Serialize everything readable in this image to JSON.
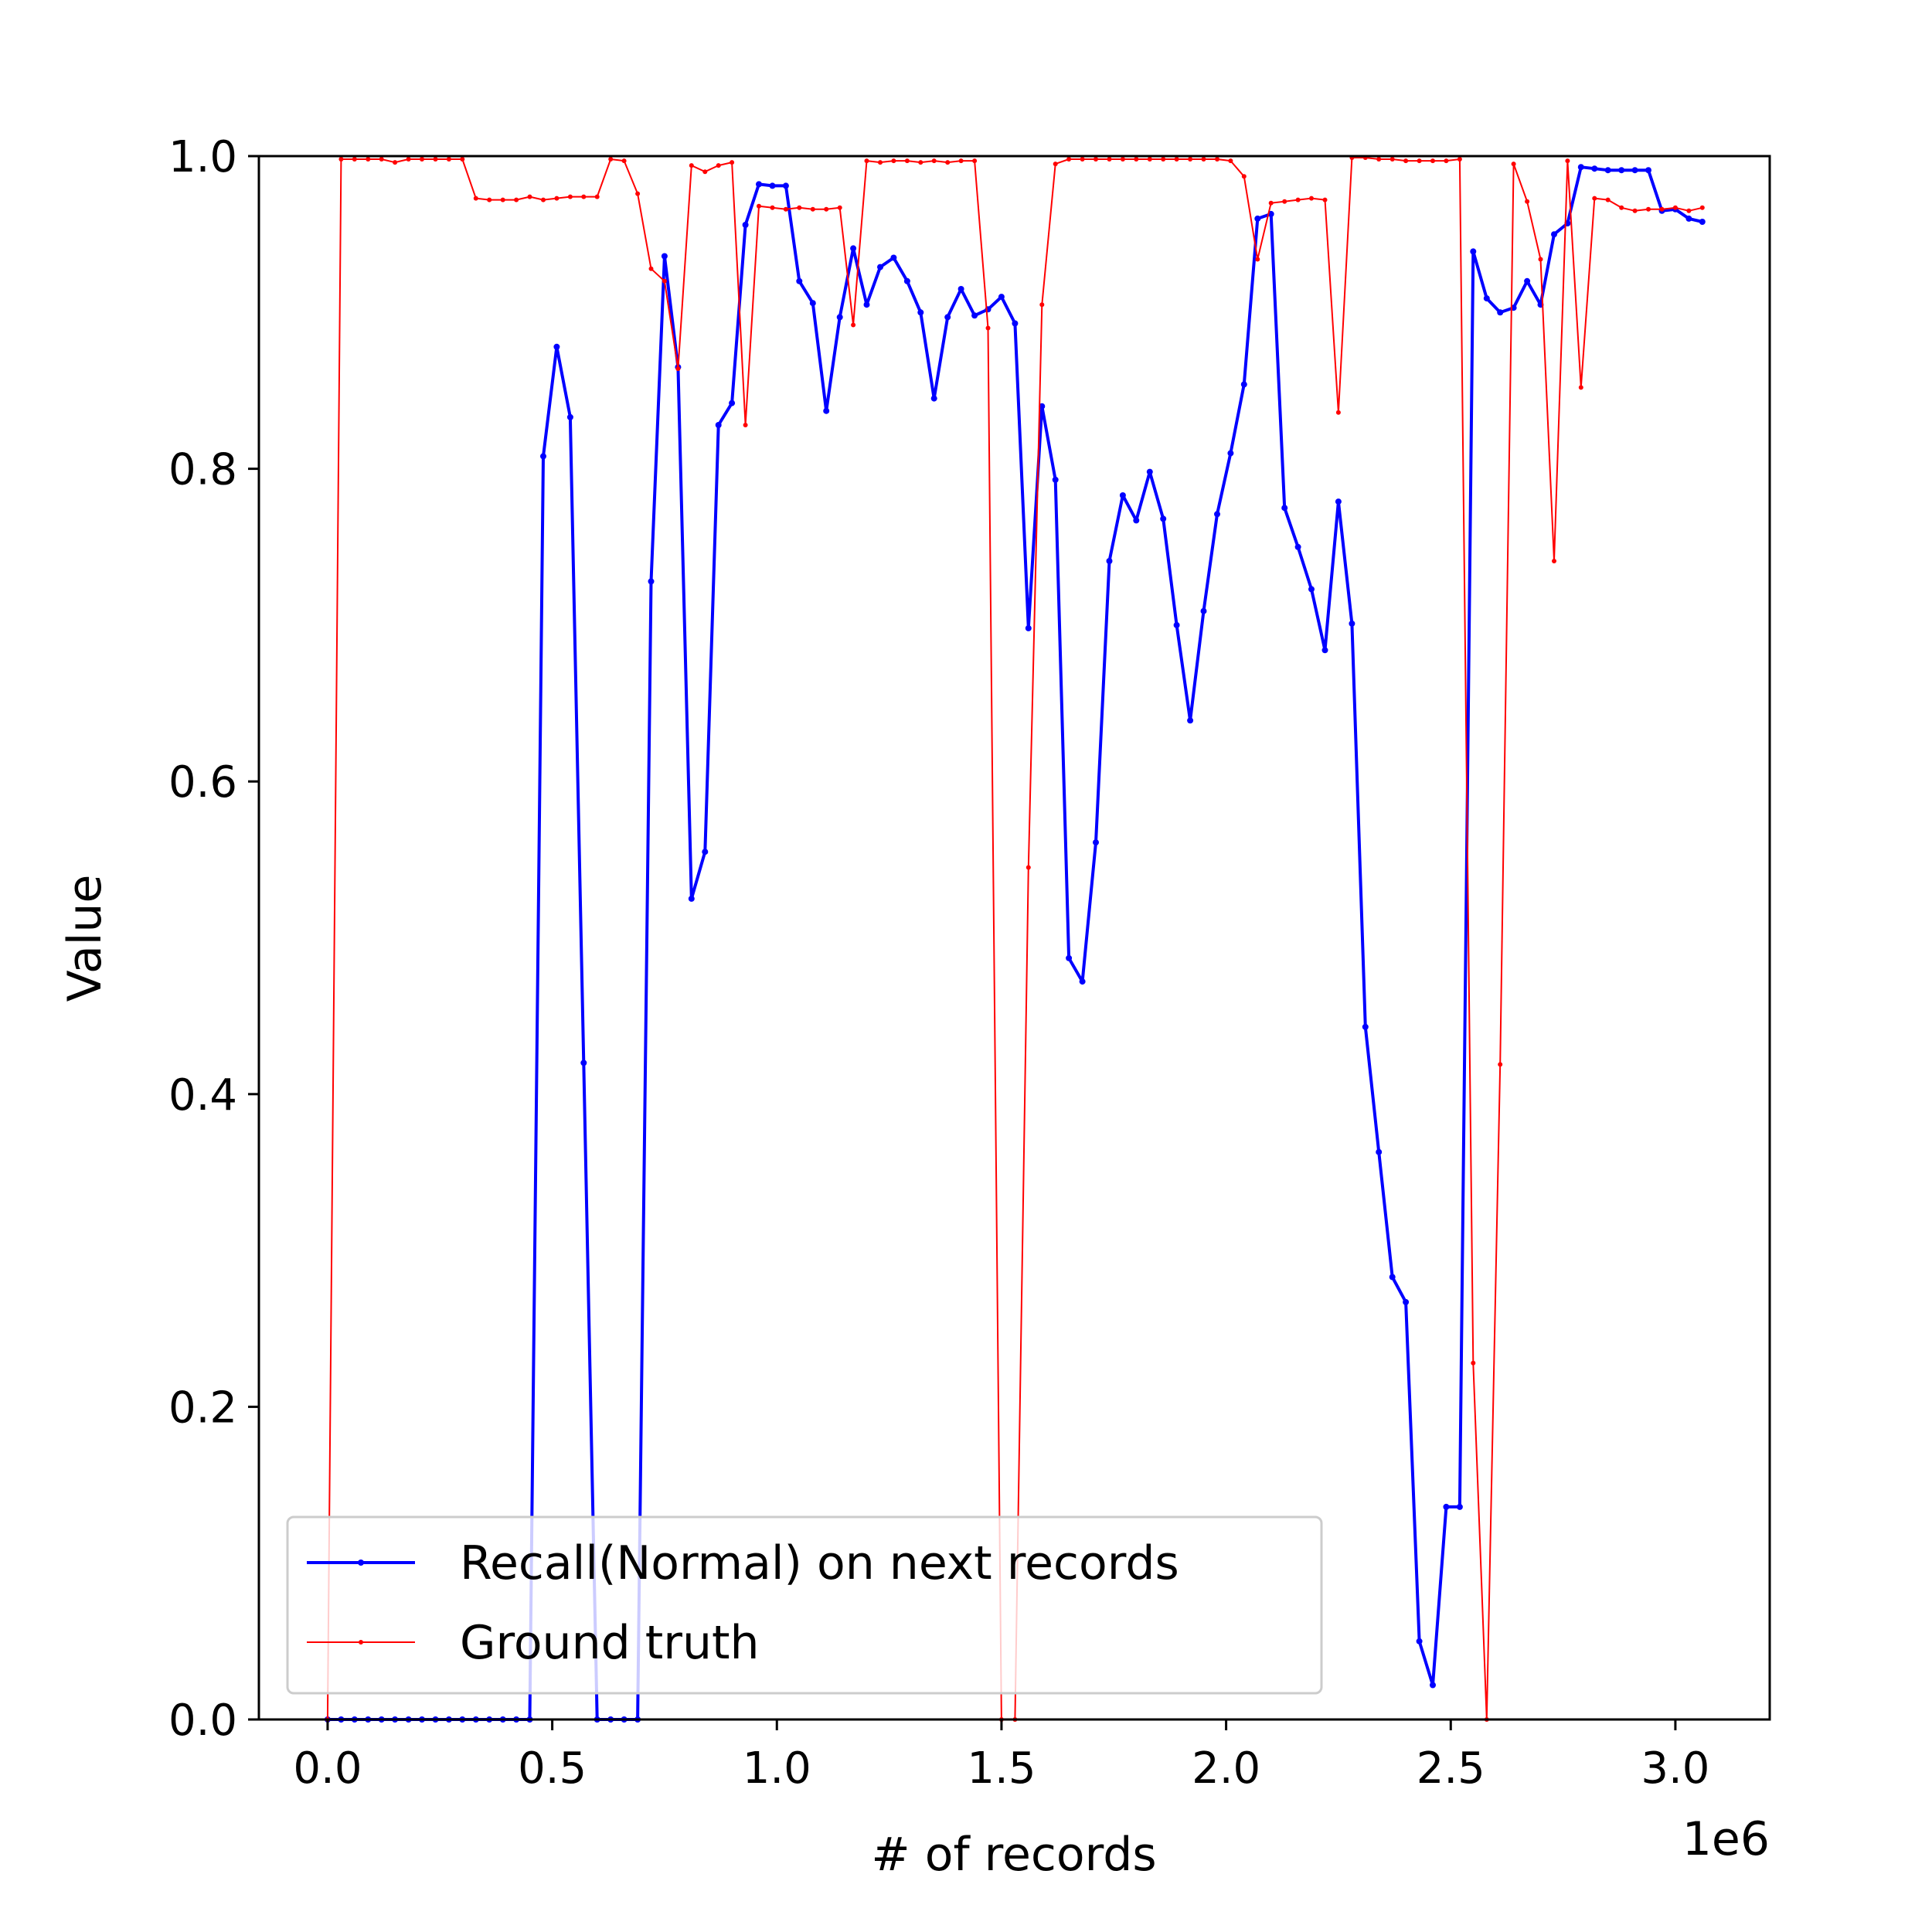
{
  "chart_data": {
    "type": "line",
    "xlabel": "# of records",
    "ylabel": "Value",
    "x_offset_text": "1e6",
    "xlim": [
      -0.153,
      3.21
    ],
    "ylim": [
      0.0,
      1.0
    ],
    "x_ticks": [
      0.0,
      0.5,
      1.0,
      1.5,
      2.0,
      2.5,
      3.0
    ],
    "x_tick_labels": [
      "0.0",
      "0.5",
      "1.0",
      "1.5",
      "2.0",
      "2.5",
      "3.0"
    ],
    "y_ticks": [
      0.0,
      0.2,
      0.4,
      0.6,
      0.8,
      1.0
    ],
    "y_tick_labels": [
      "0.0",
      "0.2",
      "0.4",
      "0.6",
      "0.8",
      "1.0"
    ],
    "grid": false,
    "legend_position": "lower left",
    "series": [
      {
        "name": "Recall(Normal) on next records",
        "color": "#0000ff",
        "points": [
          [
            0.0,
            0.0
          ],
          [
            0.03,
            0.0
          ],
          [
            0.06,
            0.0
          ],
          [
            0.09,
            0.0
          ],
          [
            0.12,
            0.0
          ],
          [
            0.15,
            0.0
          ],
          [
            0.18,
            0.0
          ],
          [
            0.21,
            0.0
          ],
          [
            0.24,
            0.0
          ],
          [
            0.27,
            0.0
          ],
          [
            0.3,
            0.0
          ],
          [
            0.33,
            0.0
          ],
          [
            0.36,
            0.0
          ],
          [
            0.39,
            0.0
          ],
          [
            0.42,
            0.0
          ],
          [
            0.45,
            0.0
          ],
          [
            0.48,
            0.808
          ],
          [
            0.51,
            0.878
          ],
          [
            0.54,
            0.833
          ],
          [
            0.57,
            0.42
          ],
          [
            0.6,
            0.0
          ],
          [
            0.63,
            0.0
          ],
          [
            0.66,
            0.0
          ],
          [
            0.69,
            0.0
          ],
          [
            0.72,
            0.728
          ],
          [
            0.75,
            0.936
          ],
          [
            0.78,
            0.865
          ],
          [
            0.81,
            0.525
          ],
          [
            0.84,
            0.555
          ],
          [
            0.87,
            0.828
          ],
          [
            0.9,
            0.842
          ],
          [
            0.93,
            0.956
          ],
          [
            0.96,
            0.982
          ],
          [
            0.99,
            0.981
          ],
          [
            1.02,
            0.981
          ],
          [
            1.05,
            0.92
          ],
          [
            1.08,
            0.906
          ],
          [
            1.11,
            0.837
          ],
          [
            1.14,
            0.897
          ],
          [
            1.17,
            0.941
          ],
          [
            1.2,
            0.905
          ],
          [
            1.23,
            0.929
          ],
          [
            1.26,
            0.935
          ],
          [
            1.29,
            0.92
          ],
          [
            1.32,
            0.9
          ],
          [
            1.35,
            0.845
          ],
          [
            1.38,
            0.897
          ],
          [
            1.41,
            0.915
          ],
          [
            1.44,
            0.898
          ],
          [
            1.47,
            0.902
          ],
          [
            1.5,
            0.91
          ],
          [
            1.53,
            0.893
          ],
          [
            1.56,
            0.698
          ],
          [
            1.59,
            0.84
          ],
          [
            1.62,
            0.793
          ],
          [
            1.65,
            0.487
          ],
          [
            1.68,
            0.472
          ],
          [
            1.71,
            0.561
          ],
          [
            1.74,
            0.741
          ],
          [
            1.77,
            0.783
          ],
          [
            1.8,
            0.767
          ],
          [
            1.83,
            0.798
          ],
          [
            1.86,
            0.768
          ],
          [
            1.89,
            0.7
          ],
          [
            1.92,
            0.639
          ],
          [
            1.95,
            0.709
          ],
          [
            1.98,
            0.771
          ],
          [
            2.01,
            0.81
          ],
          [
            2.04,
            0.854
          ],
          [
            2.07,
            0.96
          ],
          [
            2.1,
            0.963
          ],
          [
            2.13,
            0.775
          ],
          [
            2.16,
            0.75
          ],
          [
            2.19,
            0.723
          ],
          [
            2.22,
            0.684
          ],
          [
            2.25,
            0.779
          ],
          [
            2.28,
            0.701
          ],
          [
            2.31,
            0.443
          ],
          [
            2.34,
            0.363
          ],
          [
            2.37,
            0.283
          ],
          [
            2.4,
            0.267
          ],
          [
            2.43,
            0.05
          ],
          [
            2.46,
            0.022
          ],
          [
            2.49,
            0.136
          ],
          [
            2.52,
            0.136
          ],
          [
            2.55,
            0.939
          ],
          [
            2.58,
            0.909
          ],
          [
            2.61,
            0.9
          ],
          [
            2.64,
            0.903
          ],
          [
            2.67,
            0.92
          ],
          [
            2.7,
            0.905
          ],
          [
            2.73,
            0.95
          ],
          [
            2.76,
            0.957
          ],
          [
            2.79,
            0.993
          ],
          [
            2.82,
            0.992
          ],
          [
            2.85,
            0.991
          ],
          [
            2.88,
            0.991
          ],
          [
            2.91,
            0.991
          ],
          [
            2.94,
            0.991
          ],
          [
            2.97,
            0.965
          ],
          [
            3.0,
            0.966
          ],
          [
            3.03,
            0.96
          ],
          [
            3.06,
            0.958
          ]
        ]
      },
      {
        "name": "Ground truth",
        "color": "#ff0000",
        "points": [
          [
            0.0,
            0.0
          ],
          [
            0.03,
            0.998
          ],
          [
            0.06,
            0.998
          ],
          [
            0.09,
            0.998
          ],
          [
            0.12,
            0.998
          ],
          [
            0.15,
            0.996
          ],
          [
            0.18,
            0.998
          ],
          [
            0.21,
            0.998
          ],
          [
            0.24,
            0.998
          ],
          [
            0.27,
            0.998
          ],
          [
            0.3,
            0.998
          ],
          [
            0.33,
            0.973
          ],
          [
            0.36,
            0.972
          ],
          [
            0.39,
            0.972
          ],
          [
            0.42,
            0.972
          ],
          [
            0.45,
            0.974
          ],
          [
            0.48,
            0.972
          ],
          [
            0.51,
            0.973
          ],
          [
            0.54,
            0.974
          ],
          [
            0.57,
            0.974
          ],
          [
            0.6,
            0.974
          ],
          [
            0.63,
            0.998
          ],
          [
            0.66,
            0.997
          ],
          [
            0.69,
            0.976
          ],
          [
            0.72,
            0.928
          ],
          [
            0.75,
            0.92
          ],
          [
            0.78,
            0.864
          ],
          [
            0.81,
            0.994
          ],
          [
            0.84,
            0.99
          ],
          [
            0.87,
            0.994
          ],
          [
            0.9,
            0.996
          ],
          [
            0.93,
            0.828
          ],
          [
            0.96,
            0.968
          ],
          [
            0.99,
            0.967
          ],
          [
            1.02,
            0.966
          ],
          [
            1.05,
            0.967
          ],
          [
            1.08,
            0.966
          ],
          [
            1.11,
            0.966
          ],
          [
            1.14,
            0.967
          ],
          [
            1.17,
            0.892
          ],
          [
            1.2,
            0.997
          ],
          [
            1.23,
            0.996
          ],
          [
            1.26,
            0.997
          ],
          [
            1.29,
            0.997
          ],
          [
            1.32,
            0.996
          ],
          [
            1.35,
            0.997
          ],
          [
            1.38,
            0.996
          ],
          [
            1.41,
            0.997
          ],
          [
            1.44,
            0.997
          ],
          [
            1.47,
            0.89
          ],
          [
            1.5,
            0.0
          ],
          [
            1.53,
            0.0
          ],
          [
            1.56,
            0.545
          ],
          [
            1.59,
            0.905
          ],
          [
            1.62,
            0.995
          ],
          [
            1.65,
            0.998
          ],
          [
            1.68,
            0.998
          ],
          [
            1.71,
            0.998
          ],
          [
            1.74,
            0.998
          ],
          [
            1.77,
            0.998
          ],
          [
            1.8,
            0.998
          ],
          [
            1.83,
            0.998
          ],
          [
            1.86,
            0.998
          ],
          [
            1.89,
            0.998
          ],
          [
            1.92,
            0.998
          ],
          [
            1.95,
            0.998
          ],
          [
            1.98,
            0.998
          ],
          [
            2.01,
            0.997
          ],
          [
            2.04,
            0.987
          ],
          [
            2.07,
            0.934
          ],
          [
            2.1,
            0.97
          ],
          [
            2.13,
            0.971
          ],
          [
            2.16,
            0.972
          ],
          [
            2.19,
            0.973
          ],
          [
            2.22,
            0.972
          ],
          [
            2.25,
            0.836
          ],
          [
            2.28,
            0.999
          ],
          [
            2.31,
            0.999
          ],
          [
            2.34,
            0.998
          ],
          [
            2.37,
            0.998
          ],
          [
            2.4,
            0.997
          ],
          [
            2.43,
            0.997
          ],
          [
            2.46,
            0.997
          ],
          [
            2.49,
            0.997
          ],
          [
            2.52,
            0.998
          ],
          [
            2.55,
            0.228
          ],
          [
            2.58,
            0.0
          ],
          [
            2.61,
            0.419
          ],
          [
            2.64,
            0.995
          ],
          [
            2.67,
            0.971
          ],
          [
            2.7,
            0.934
          ],
          [
            2.73,
            0.741
          ],
          [
            2.76,
            0.997
          ],
          [
            2.79,
            0.852
          ],
          [
            2.82,
            0.973
          ],
          [
            2.85,
            0.972
          ],
          [
            2.88,
            0.967
          ],
          [
            2.91,
            0.965
          ],
          [
            2.94,
            0.966
          ],
          [
            2.97,
            0.966
          ],
          [
            3.0,
            0.967
          ],
          [
            3.03,
            0.965
          ],
          [
            3.06,
            0.967
          ]
        ]
      }
    ]
  }
}
